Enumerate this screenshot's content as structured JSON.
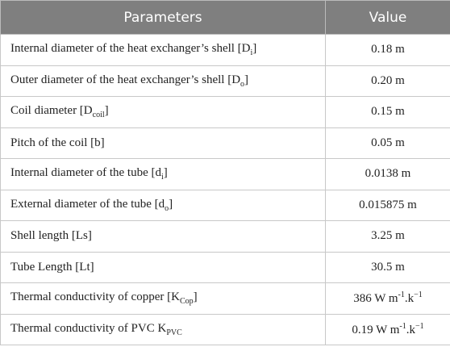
{
  "table": {
    "header": [
      "Parameters",
      "Value"
    ],
    "rows": [
      {
        "parameter": [
          "Internal diameter of the heat exchanger’s shell [D",
          {
            "sub": "i"
          },
          "]"
        ],
        "value": [
          "0.18 m"
        ]
      },
      {
        "parameter": [
          "Outer diameter of the heat exchanger’s shell [D",
          {
            "sub": "o"
          },
          "]"
        ],
        "value": [
          "0.20 m"
        ]
      },
      {
        "parameter": [
          "Coil diameter [D",
          {
            "sub": "coil"
          },
          "]"
        ],
        "value": [
          "0.15 m"
        ]
      },
      {
        "parameter": [
          "Pitch of the coil [b]"
        ],
        "value": [
          "0.05 m"
        ]
      },
      {
        "parameter": [
          "Internal diameter of the tube [d",
          {
            "sub": "i"
          },
          "]"
        ],
        "value": [
          "0.0138 m"
        ]
      },
      {
        "parameter": [
          "External diameter of the tube [d",
          {
            "sub": "o"
          },
          "]"
        ],
        "value": [
          "0.015875 m"
        ]
      },
      {
        "parameter": [
          "Shell length [Ls]"
        ],
        "value": [
          "3.25 m"
        ]
      },
      {
        "parameter": [
          "Tube Length [Lt]"
        ],
        "value": [
          "30.5 m"
        ]
      },
      {
        "parameter": [
          "Thermal conductivity of copper [K",
          {
            "sub": "Cop"
          },
          "]"
        ],
        "value": [
          "386 W m",
          {
            "sup": "-1"
          },
          ".k",
          {
            "sup": "−1"
          }
        ]
      },
      {
        "parameter": [
          "Thermal conductivity of PVC K",
          {
            "sub": "PVC"
          }
        ],
        "value": [
          "0.19 W m",
          {
            "sup": "-1"
          },
          ".k",
          {
            "sup": "−1"
          }
        ]
      }
    ]
  }
}
